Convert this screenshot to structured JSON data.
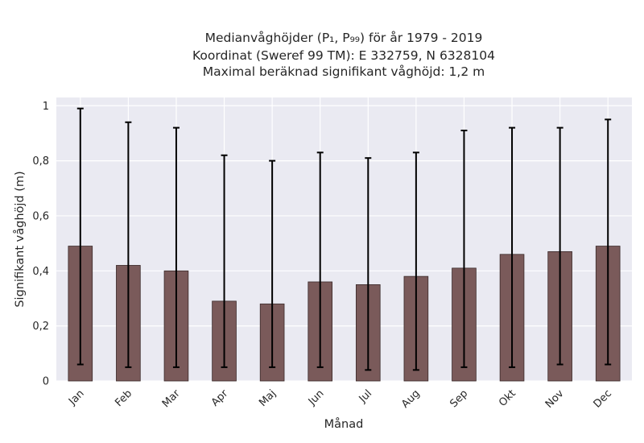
{
  "chart_data": {
    "type": "bar",
    "title": "Medianvåghöjder (P1, P99) för år 1979 - 2019",
    "title_lines": [
      "Medianvåghöjder (P₁, P₉₉) för år 1979 - 2019",
      "Koordinat (Sweref 99 TM): E 332759, N 6328104",
      "Maximal beräknad signifikant våghöjd: 1,2 m"
    ],
    "xlabel": "Månad",
    "ylabel": "Signifikant våghöjd (m)",
    "categories": [
      "Jan",
      "Feb",
      "Mar",
      "Apr",
      "Maj",
      "Jun",
      "Jul",
      "Aug",
      "Sep",
      "Okt",
      "Nov",
      "Dec"
    ],
    "values": [
      0.49,
      0.42,
      0.4,
      0.29,
      0.28,
      0.36,
      0.35,
      0.38,
      0.41,
      0.46,
      0.47,
      0.49
    ],
    "p1": [
      0.06,
      0.05,
      0.05,
      0.05,
      0.05,
      0.05,
      0.04,
      0.04,
      0.05,
      0.05,
      0.06,
      0.06
    ],
    "p99": [
      0.99,
      0.94,
      0.92,
      0.82,
      0.8,
      0.83,
      0.81,
      0.83,
      0.91,
      0.92,
      0.92,
      0.95
    ],
    "ylim": [
      0,
      1.03
    ],
    "yticks": [
      0,
      0.2,
      0.4,
      0.6,
      0.8,
      1
    ],
    "ytick_labels": [
      "0",
      "0,2",
      "0,4",
      "0,6",
      "0,8",
      "1"
    ],
    "grid": true,
    "colors": {
      "bar": "#7a5a5a",
      "bar_edge": "#3a2a2a",
      "errorbar": "#000000",
      "plot_bg": "#eaeaf2",
      "grid": "#ffffff"
    }
  }
}
